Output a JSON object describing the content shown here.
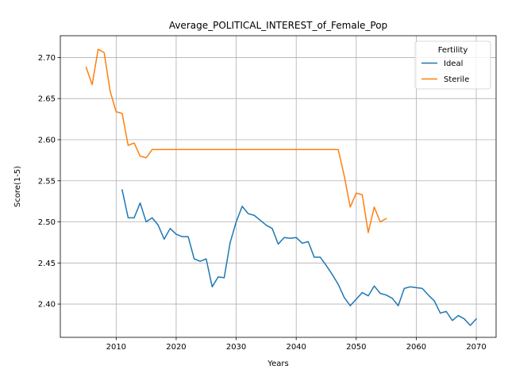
{
  "chart_data": {
    "type": "line",
    "title": "Average_POLITICAL_INTEREST_of_Female_Pop",
    "xlabel": "Years",
    "ylabel": "Score(1-5)",
    "xlim": [
      2000.7,
      2073.3
    ],
    "ylim": [
      2.3595,
      2.7265
    ],
    "xticks": [
      2010,
      2020,
      2030,
      2040,
      2050,
      2060,
      2070
    ],
    "yticks": [
      2.4,
      2.45,
      2.5,
      2.55,
      2.6,
      2.65,
      2.7
    ],
    "xtick_labels": [
      "2010",
      "2020",
      "2030",
      "2040",
      "2050",
      "2060",
      "2070"
    ],
    "ytick_labels": [
      "2.40",
      "2.45",
      "2.50",
      "2.55",
      "2.60",
      "2.65",
      "2.70"
    ],
    "grid": true,
    "legend": {
      "title": "Fertility",
      "placement": "top-right"
    },
    "series": [
      {
        "name": "Ideal",
        "color": "#1f77b4",
        "x": [
          2011,
          2012,
          2013,
          2014,
          2015,
          2016,
          2017,
          2018,
          2019,
          2020,
          2021,
          2022,
          2023,
          2024,
          2025,
          2026,
          2027,
          2028,
          2029,
          2030,
          2031,
          2032,
          2033,
          2034,
          2035,
          2036,
          2037,
          2038,
          2039,
          2040,
          2041,
          2042,
          2043,
          2044,
          2045,
          2046,
          2047,
          2048,
          2049,
          2050,
          2051,
          2052,
          2053,
          2054,
          2055,
          2056,
          2057,
          2058,
          2059,
          2060,
          2061,
          2062,
          2063,
          2064,
          2065,
          2066,
          2067,
          2068,
          2069,
          2070
        ],
        "y": [
          2.539,
          2.505,
          2.505,
          2.523,
          2.5,
          2.505,
          2.496,
          2.479,
          2.492,
          2.485,
          2.482,
          2.482,
          2.455,
          2.452,
          2.455,
          2.421,
          2.433,
          2.432,
          2.475,
          2.5,
          2.519,
          2.51,
          2.508,
          2.502,
          2.496,
          2.492,
          2.473,
          2.481,
          2.48,
          2.481,
          2.474,
          2.476,
          2.457,
          2.457,
          2.447,
          2.436,
          2.424,
          2.408,
          2.398,
          2.406,
          2.414,
          2.41,
          2.422,
          2.413,
          2.411,
          2.407,
          2.398,
          2.419,
          2.421,
          2.42,
          2.419,
          2.411,
          2.404,
          2.389,
          2.391,
          2.38,
          2.386,
          2.382,
          2.374,
          2.382
        ]
      },
      {
        "name": "Sterile",
        "color": "#ff7f0e",
        "x": [
          2005,
          2006,
          2007,
          2008,
          2009,
          2010,
          2011,
          2012,
          2013,
          2014,
          2015,
          2016,
          2017,
          2018,
          2019,
          2020,
          2021,
          2022,
          2023,
          2024,
          2025,
          2026,
          2027,
          2028,
          2029,
          2030,
          2031,
          2032,
          2033,
          2034,
          2035,
          2036,
          2037,
          2038,
          2039,
          2040,
          2041,
          2042,
          2043,
          2044,
          2045,
          2046,
          2047,
          2048,
          2049,
          2050,
          2051,
          2052,
          2053,
          2054,
          2055
        ],
        "y": [
          2.688,
          2.667,
          2.71,
          2.706,
          2.659,
          2.634,
          2.632,
          2.593,
          2.596,
          2.58,
          2.578,
          2.588,
          2.588,
          2.588,
          2.588,
          2.588,
          2.588,
          2.588,
          2.588,
          2.588,
          2.588,
          2.588,
          2.588,
          2.588,
          2.588,
          2.588,
          2.588,
          2.588,
          2.588,
          2.588,
          2.588,
          2.588,
          2.588,
          2.588,
          2.588,
          2.588,
          2.588,
          2.588,
          2.588,
          2.588,
          2.588,
          2.588,
          2.588,
          2.556,
          2.518,
          2.535,
          2.533,
          2.487,
          2.518,
          2.5,
          2.504
        ]
      }
    ]
  }
}
